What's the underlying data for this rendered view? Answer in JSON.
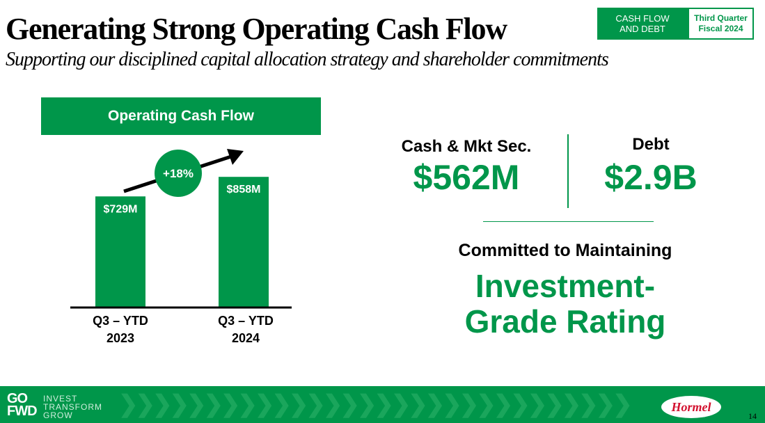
{
  "header": {
    "title": "Generating Strong Operating Cash Flow",
    "subtitle": "Supporting our disciplined capital allocation strategy and shareholder commitments",
    "tag_section": "CASH FLOW AND DEBT",
    "tag_period": "Third Quarter Fiscal 2024"
  },
  "panel": {
    "title": "Operating Cash Flow",
    "growth_label": "+18%"
  },
  "chart_data": {
    "type": "bar",
    "title": "Operating Cash Flow",
    "categories": [
      "Q3 – YTD 2023",
      "Q3 – YTD 2024"
    ],
    "category_lines": [
      [
        "Q3 – YTD",
        "2023"
      ],
      [
        "Q3 – YTD",
        "2024"
      ]
    ],
    "values": [
      729,
      858
    ],
    "value_labels": [
      "$729M",
      "$858M"
    ],
    "unit": "$M",
    "ylim": [
      0,
      1000
    ],
    "annotation": "+18%",
    "bar_color": "#00964a",
    "grid": false
  },
  "metrics": {
    "cash_label": "Cash & Mkt Sec.",
    "cash_value": "$562M",
    "debt_label": "Debt",
    "debt_value": "$2.9B"
  },
  "commitment": {
    "line1": "Committed to Maintaining",
    "line2a": "Investment-",
    "line2b": "Grade Rating"
  },
  "footer": {
    "logo_mark_top": "GO",
    "logo_mark_bottom": "FWD",
    "logo_word1": "INVEST",
    "logo_word2": "TRANSFORM",
    "logo_word3": "GROW",
    "brand": "Hormel",
    "page_number": "14"
  },
  "colors": {
    "accent": "#00964a",
    "brand_red": "#d3102e"
  }
}
